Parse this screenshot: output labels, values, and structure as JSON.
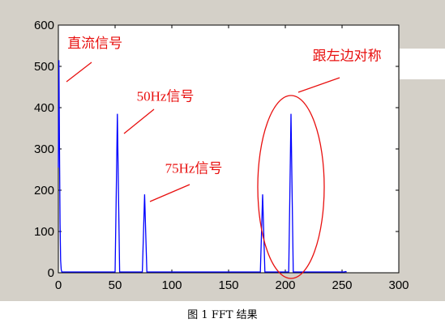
{
  "chart_data": {
    "type": "line",
    "title": "",
    "xlabel": "",
    "ylabel": "",
    "xlim": [
      0,
      300
    ],
    "ylim": [
      0,
      600
    ],
    "xticks": [
      "0",
      "50",
      "100",
      "150",
      "200",
      "250",
      "300"
    ],
    "yticks": [
      "0",
      "100",
      "200",
      "300",
      "400",
      "500",
      "600"
    ],
    "grid": false,
    "series": [
      {
        "color": "#0000ff",
        "x": [
          0,
          0.5,
          1,
          1.5,
          2,
          2.5,
          3,
          50,
          51,
          52,
          53,
          54,
          74,
          75,
          76,
          77,
          78,
          178,
          179,
          180,
          181,
          182,
          203,
          204,
          205,
          206,
          207,
          252,
          253,
          254
        ],
        "y": [
          255,
          515,
          300,
          120,
          30,
          8,
          2,
          2,
          190,
          385,
          190,
          2,
          2,
          95,
          190,
          95,
          2,
          2,
          95,
          190,
          95,
          2,
          2,
          190,
          385,
          190,
          2,
          2,
          3,
          2
        ]
      }
    ],
    "annotations": [
      {
        "text": "直流信号",
        "x": 8,
        "y": 545
      },
      {
        "text": "50Hz信号",
        "x": 69,
        "y": 417
      },
      {
        "text": "75Hz信号",
        "x": 94,
        "y": 242
      },
      {
        "text": "跟左边对称",
        "x": 224,
        "y": 515
      }
    ]
  },
  "caption": "图 1 FFT 结果",
  "colors": {
    "frame_bg": "#d4d0c8",
    "plot_bg": "#ffffff",
    "series": "#0000ff",
    "annotation": "#e8100f"
  }
}
